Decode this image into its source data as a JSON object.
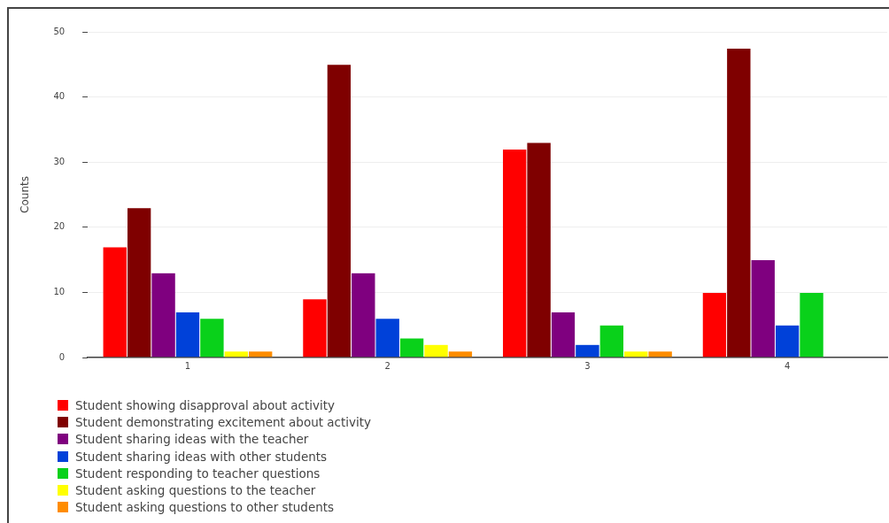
{
  "chart_data": {
    "type": "bar",
    "ylabel": "Counts",
    "categories": [
      "1",
      "2",
      "3",
      "4"
    ],
    "series": [
      {
        "name": "Student showing disapproval about activity",
        "color": "#ff0000",
        "values": [
          17,
          9,
          32,
          10
        ]
      },
      {
        "name": "Student demonstrating excitement about activity",
        "color": "#7f0000",
        "values": [
          23,
          45,
          33,
          47.5
        ]
      },
      {
        "name": "Student sharing ideas with the teacher",
        "color": "#7f007f",
        "values": [
          13,
          13,
          7,
          15
        ]
      },
      {
        "name": "Student sharing ideas with other students",
        "color": "#0041d9",
        "values": [
          7,
          6,
          2,
          5
        ]
      },
      {
        "name": "Student responding to teacher questions",
        "color": "#09d11a",
        "values": [
          6,
          3,
          5,
          10
        ]
      },
      {
        "name": "Student asking questions to the teacher",
        "color": "#ffff00",
        "values": [
          1,
          2,
          1,
          0
        ]
      },
      {
        "name": "Student asking questions to other students",
        "color": "#ff8c00",
        "values": [
          1,
          1,
          1,
          0
        ]
      }
    ],
    "ylim": [
      0,
      50
    ],
    "yticks": [
      0,
      10,
      20,
      30,
      40,
      50
    ],
    "grid": "y",
    "legend": "bottom"
  }
}
